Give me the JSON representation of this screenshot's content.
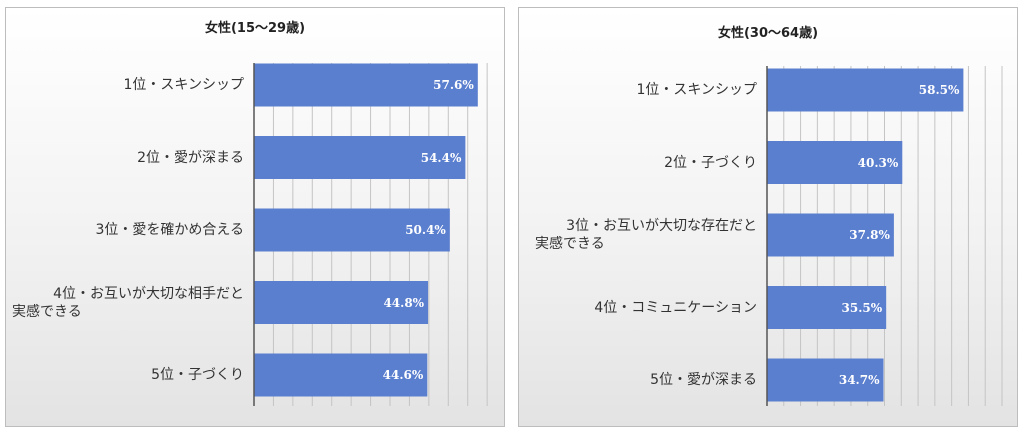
{
  "chart_data": [
    {
      "type": "bar",
      "orientation": "horizontal",
      "title": "女性(15～29歳)",
      "categories": [
        "1位・スキンシップ",
        "2位・愛が深まる",
        "3位・愛を確かめ合える",
        "4位・お互いが大切な相手だと実感できる",
        "5位・子づくり"
      ],
      "category_lines": [
        [
          "1位・スキンシップ"
        ],
        [
          "2位・愛が深まる"
        ],
        [
          "3位・愛を確かめ合える"
        ],
        [
          "4位・お互いが大切な相手だと",
          "実感できる"
        ],
        [
          "5位・子づくり"
        ]
      ],
      "values": [
        57.6,
        54.4,
        50.4,
        44.8,
        44.6
      ],
      "value_labels": [
        "57.6%",
        "54.4%",
        "50.4%",
        "44.8%",
        "44.6%"
      ],
      "xlim": [
        0,
        70
      ],
      "grid": true,
      "bar_color": "#5b7fcf"
    },
    {
      "type": "bar",
      "orientation": "horizontal",
      "title": "女性(30～64歳)",
      "categories": [
        "1位・スキンシップ",
        "2位・子づくり",
        "3位・お互いが大切な存在だと実感できる",
        "4位・コミュニケーション",
        "5位・愛が深まる"
      ],
      "category_lines": [
        [
          "1位・スキンシップ"
        ],
        [
          "2位・子づくり"
        ],
        [
          "3位・お互いが大切な存在だと",
          "実感できる"
        ],
        [
          "4位・コミュニケーション"
        ],
        [
          "5位・愛が深まる"
        ]
      ],
      "values": [
        58.5,
        40.3,
        37.8,
        35.5,
        34.7
      ],
      "value_labels": [
        "58.5%",
        "40.3%",
        "37.8%",
        "35.5%",
        "34.7%"
      ],
      "xlim": [
        0,
        70
      ],
      "grid": true,
      "bar_color": "#5b7fcf"
    }
  ]
}
